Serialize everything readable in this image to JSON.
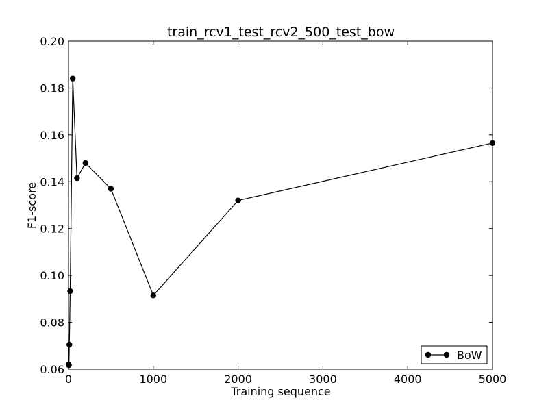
{
  "chart_data": {
    "type": "line",
    "title": "train_rcv1_test_rcv2_500_test_bow",
    "xlabel": "Training sequence",
    "ylabel": "F1-score",
    "xlim": [
      0,
      5000
    ],
    "ylim": [
      0.06,
      0.2
    ],
    "xticks": [
      0,
      1000,
      2000,
      3000,
      4000,
      5000
    ],
    "xtick_labels": [
      "0",
      "1000",
      "2000",
      "3000",
      "4000",
      "5000"
    ],
    "yticks": [
      0.06,
      0.08,
      0.1,
      0.12,
      0.14,
      0.16,
      0.18,
      0.2
    ],
    "ytick_labels": [
      "0.06",
      "0.08",
      "0.10",
      "0.12",
      "0.14",
      "0.16",
      "0.18",
      "0.20"
    ],
    "grid": false,
    "legend_position": "bottom-right",
    "series": [
      {
        "name": "BoW",
        "color": "#000000",
        "marker": "circle",
        "x": [
          1,
          5,
          10,
          20,
          50,
          100,
          200,
          500,
          1000,
          2000,
          5000
        ],
        "y": [
          0.062,
          0.0617,
          0.0705,
          0.0933,
          0.184,
          0.1415,
          0.148,
          0.137,
          0.0915,
          0.132,
          0.1565
        ]
      }
    ]
  }
}
